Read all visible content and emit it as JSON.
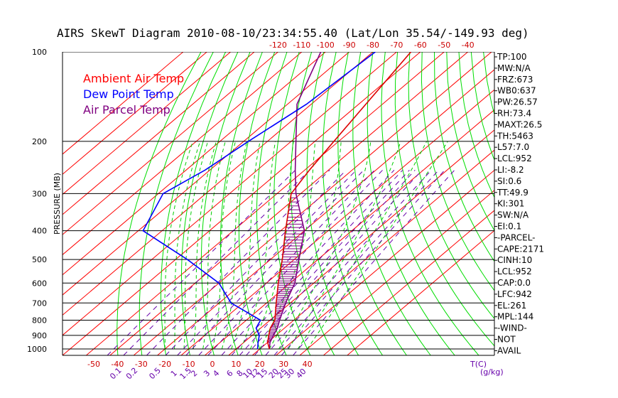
{
  "chart_data": {
    "type": "line",
    "title": "AIRS SkewT Diagram 2010-08-10/23:34:55.40 (Lat/Lon 35.54/-149.93 deg)",
    "ylabel": "PRESSURE (MB)",
    "xlabel": "T(C)",
    "mixing_ratio_unit": "(g/kg)",
    "y_ticks": [
      "100",
      "200",
      "300",
      "400",
      "500",
      "600",
      "700",
      "800",
      "900",
      "1000"
    ],
    "x_bottom_ticks": [
      "-50",
      "-40",
      "-30",
      "-20",
      "-10",
      "0",
      "10",
      "20",
      "30",
      "40"
    ],
    "x_top_ticks": [
      "-120",
      "-110",
      "-100",
      "-90",
      "-80",
      "-70",
      "-60",
      "-50",
      "-40"
    ],
    "mixing_ratio_labels": [
      "0.1",
      "0.2",
      "0.5",
      "1",
      "1.5",
      "2",
      "3",
      "4",
      "6",
      "8",
      "10",
      "12",
      "15",
      "20",
      "25",
      "30",
      "40"
    ],
    "legend": [
      {
        "label": "Ambient Air Temp",
        "color": "#ff0000"
      },
      {
        "label": "Dew Point Temp",
        "color": "#0000ff"
      },
      {
        "label": "Air Parcel Temp",
        "color": "#800080"
      }
    ],
    "series": [
      {
        "name": "Ambient Air Temp",
        "color": "#dd0000",
        "pressure": [
          100,
          150,
          200,
          250,
          300,
          400,
          500,
          600,
          700,
          800,
          850,
          900,
          950,
          1000
        ],
        "temp": [
          -64,
          -57,
          -52,
          -48,
          -44,
          -28,
          -15,
          -5,
          4,
          12,
          14,
          17,
          20,
          24
        ]
      },
      {
        "name": "Dew Point Temp",
        "color": "#0000ff",
        "pressure": [
          100,
          150,
          200,
          250,
          300,
          400,
          500,
          600,
          700,
          800,
          850,
          900,
          950,
          1000
        ],
        "temp": [
          -79,
          -82,
          -88,
          -92,
          -98,
          -88,
          -55,
          -30,
          -15,
          6,
          8,
          13,
          16,
          19
        ]
      },
      {
        "name": "Air Parcel Temp",
        "color": "#800080",
        "pressure": [
          100,
          150,
          200,
          250,
          300,
          400,
          500,
          600,
          700,
          800,
          850,
          900,
          950,
          1000
        ],
        "temp": [
          -102,
          -86,
          -68,
          -54,
          -42,
          -20,
          -8,
          2,
          8,
          14,
          17,
          19,
          21,
          24
        ]
      }
    ],
    "indices": [
      "TP:100",
      "MW:N/A",
      "FRZ:673",
      "WB0:637",
      "PW:26.57",
      "RH:73.4",
      "MAXT:26.5",
      "TH:5463",
      "L57:7.0",
      "LCL:952",
      "LI:-8.2",
      "SI:0.6",
      "TT:49.9",
      "KI:301",
      "SW:N/A",
      "EI:0.1",
      "-PARCEL-",
      "CAPE:2171",
      "CINH:10",
      "LCL:952",
      "CAP:0.0",
      "LFC:942",
      "EL:261",
      "MPL:144",
      "-WIND-",
      "NOT",
      "AVAIL"
    ],
    "colors": {
      "isotherm": "#ff0000",
      "dry_adiabat": "#00dd00",
      "moist_adiabat": "#00cc00",
      "mixing_ratio": "#6600aa",
      "isobar": "#000000"
    },
    "y_scale": "log",
    "ylim": [
      100,
      1050
    ]
  }
}
